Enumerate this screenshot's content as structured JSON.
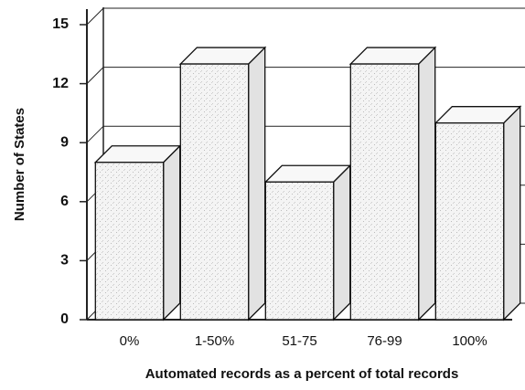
{
  "chart_data": {
    "type": "bar3d",
    "x_label": "Automated records as a percent of total records",
    "y_label": "Number of States",
    "categories": [
      "0%",
      "1-50%",
      "51-75",
      "76-99",
      "100%"
    ],
    "values": [
      8,
      13,
      7,
      13,
      10
    ],
    "color": "#efefef",
    "ylim": [
      0,
      15
    ],
    "yticks": [
      0,
      3,
      6,
      9,
      12,
      15
    ],
    "grid": true
  }
}
